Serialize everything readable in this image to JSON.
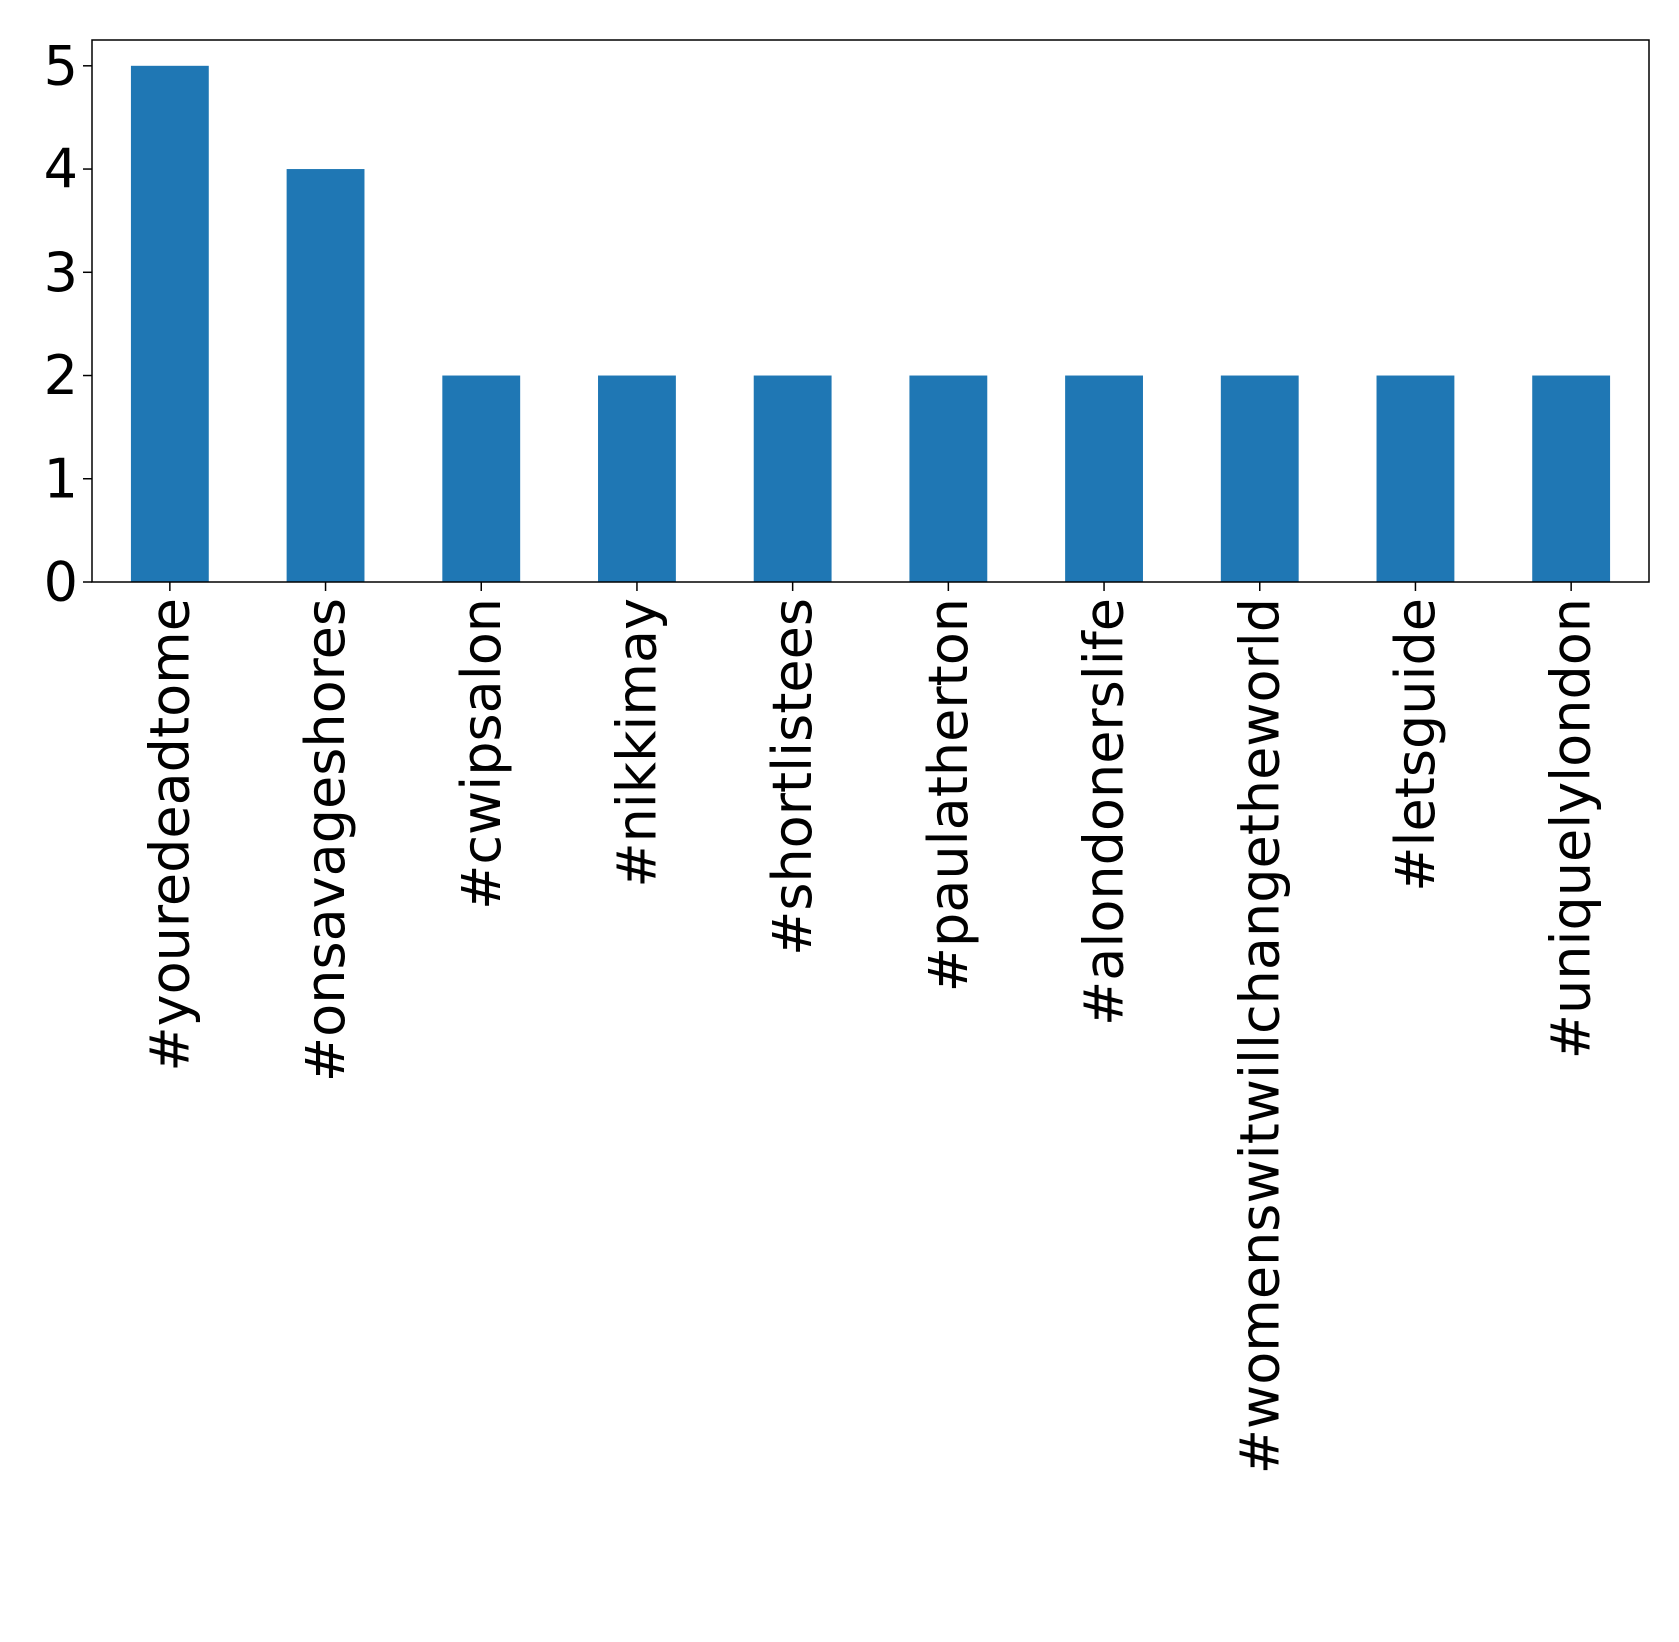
{
  "chart_data": {
    "type": "bar",
    "categories": [
      "#youredeadtome",
      "#onsavageshores",
      "#cwipsalon",
      "#nikkimay",
      "#shortlistees",
      "#paulatherton",
      "#alondonerslife",
      "#womenswitwillchangetheworld",
      "#letsguide",
      "#uniquelylondon"
    ],
    "values": [
      5,
      4,
      2,
      2,
      2,
      2,
      2,
      2,
      2,
      2
    ],
    "title": "",
    "xlabel": "",
    "ylabel": "",
    "ylim": [
      0,
      5.25
    ],
    "yticks": [
      0,
      1,
      2,
      3,
      4,
      5
    ],
    "grid": false,
    "bar_color": "#1f77b4"
  }
}
